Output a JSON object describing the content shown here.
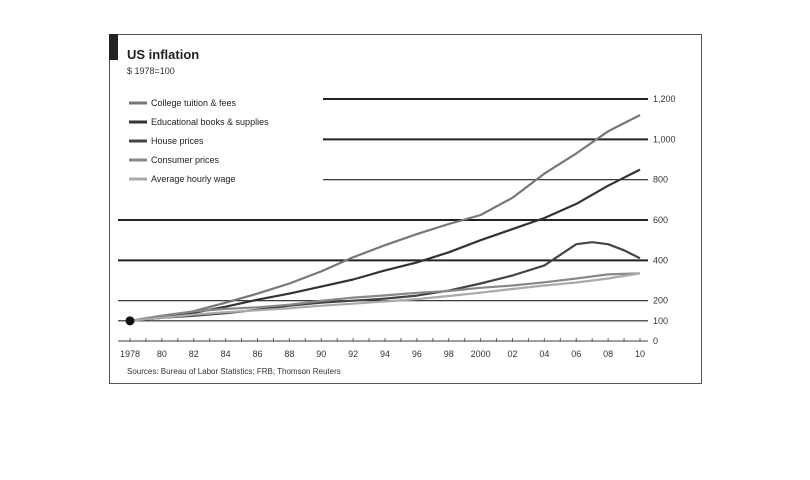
{
  "chart_data": {
    "type": "line",
    "title": "US inflation",
    "subtitle": "$ 1978=100",
    "source": "Sources: Bureau of Labor Statistics; FRB; Thomson Reuters",
    "ylim": [
      0,
      1200
    ],
    "yticks": [
      0,
      100,
      200,
      400,
      600,
      800,
      1000,
      1200
    ],
    "ytick_labels": [
      "0",
      "100",
      "200",
      "400",
      "600",
      "800",
      "1,000",
      "1,200"
    ],
    "xlim": [
      1978,
      2010
    ],
    "xtick_values": [
      1978,
      1980,
      1982,
      1984,
      1986,
      1988,
      1990,
      1992,
      1994,
      1996,
      1998,
      2000,
      2002,
      2004,
      2006,
      2008,
      2010
    ],
    "xtick_labels": [
      "1978",
      "80",
      "82",
      "84",
      "86",
      "88",
      "90",
      "92",
      "94",
      "96",
      "98",
      "2000",
      "02",
      "04",
      "06",
      "08",
      "10"
    ],
    "grid": true,
    "legend_position": "top-left",
    "series": [
      {
        "name": "College tuition & fees",
        "color": "#777777",
        "x": [
          1978,
          1980,
          1982,
          1984,
          1986,
          1988,
          1990,
          1992,
          1994,
          1996,
          1998,
          2000,
          2002,
          2004,
          2006,
          2008,
          2010
        ],
        "y": [
          100,
          118,
          148,
          190,
          235,
          285,
          345,
          415,
          475,
          530,
          580,
          625,
          710,
          830,
          930,
          1040,
          1120
        ]
      },
      {
        "name": "Educational books & supplies",
        "color": "#333333",
        "x": [
          1978,
          1980,
          1982,
          1984,
          1986,
          1988,
          1990,
          1992,
          1994,
          1996,
          1998,
          2000,
          2002,
          2004,
          2006,
          2008,
          2010
        ],
        "y": [
          100,
          115,
          140,
          170,
          205,
          235,
          270,
          305,
          350,
          390,
          440,
          500,
          555,
          610,
          680,
          770,
          850
        ]
      },
      {
        "name": "House prices",
        "color": "#444444",
        "x": [
          1978,
          1980,
          1982,
          1984,
          1986,
          1988,
          1990,
          1992,
          1994,
          1996,
          1998,
          2000,
          2002,
          2004,
          2006,
          2007,
          2008,
          2009,
          2010
        ],
        "y": [
          100,
          115,
          125,
          138,
          155,
          175,
          190,
          200,
          210,
          225,
          250,
          285,
          325,
          375,
          480,
          490,
          480,
          450,
          410
        ]
      },
      {
        "name": "Consumer prices",
        "color": "#888888",
        "x": [
          1978,
          1980,
          1982,
          1984,
          1986,
          1988,
          1990,
          1992,
          1994,
          1996,
          1998,
          2000,
          2002,
          2004,
          2006,
          2008,
          2010
        ],
        "y": [
          100,
          126,
          147,
          159,
          167,
          180,
          199,
          215,
          226,
          239,
          248,
          264,
          275,
          291,
          310,
          330,
          335
        ]
      },
      {
        "name": "Average hourly wage",
        "color": "#aaaaaa",
        "x": [
          1978,
          1980,
          1982,
          1984,
          1986,
          1988,
          1990,
          1992,
          1994,
          1996,
          1998,
          2000,
          2002,
          2004,
          2006,
          2008,
          2010
        ],
        "y": [
          100,
          115,
          131,
          143,
          152,
          162,
          175,
          185,
          196,
          208,
          223,
          240,
          258,
          275,
          290,
          310,
          335
        ]
      }
    ]
  }
}
